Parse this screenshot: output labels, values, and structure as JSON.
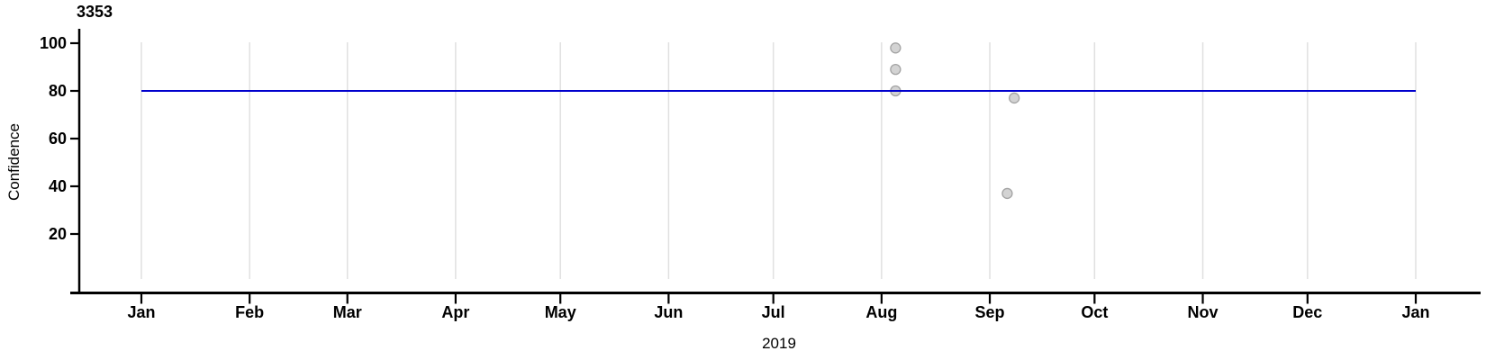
{
  "chart_data": {
    "type": "scatter",
    "title": "3353",
    "xlabel": "2019",
    "ylabel": "Confidence",
    "grid": "vertical-monthly",
    "legend": "none",
    "x_axis": {
      "unit": "month-of-2019",
      "ticks": [
        {
          "label": "Jan",
          "day": 0
        },
        {
          "label": "Feb",
          "day": 31
        },
        {
          "label": "Mar",
          "day": 59
        },
        {
          "label": "Apr",
          "day": 90
        },
        {
          "label": "May",
          "day": 120
        },
        {
          "label": "Jun",
          "day": 151
        },
        {
          "label": "Jul",
          "day": 181
        },
        {
          "label": "Aug",
          "day": 212
        },
        {
          "label": "Sep",
          "day": 243
        },
        {
          "label": "Oct",
          "day": 273
        },
        {
          "label": "Nov",
          "day": 304
        },
        {
          "label": "Dec",
          "day": 334
        },
        {
          "label": "Jan",
          "day": 365
        }
      ]
    },
    "y_axis": {
      "ticks": [
        100,
        80,
        60,
        40,
        20
      ],
      "ylim": [
        0,
        107
      ]
    },
    "threshold_line": {
      "value": 80,
      "span_days": [
        0,
        365
      ],
      "color": "#0000CD"
    },
    "points": [
      {
        "date": "Aug 4",
        "day_of_year": 216,
        "confidence": 98
      },
      {
        "date": "Aug 4",
        "day_of_year": 216,
        "confidence": 89
      },
      {
        "date": "Aug 4",
        "day_of_year": 216,
        "confidence": 80
      },
      {
        "date": "Sep 7",
        "day_of_year": 250,
        "confidence": 77
      },
      {
        "date": "Sep 5",
        "day_of_year": 248,
        "confidence": 37
      }
    ],
    "colors": {
      "axis": "#000000",
      "grid": "#E0E0E0",
      "point_fill": "#D3D3D3",
      "point_stroke": "#A3A3A3",
      "line": "#0000CD",
      "text": "#000000"
    }
  }
}
